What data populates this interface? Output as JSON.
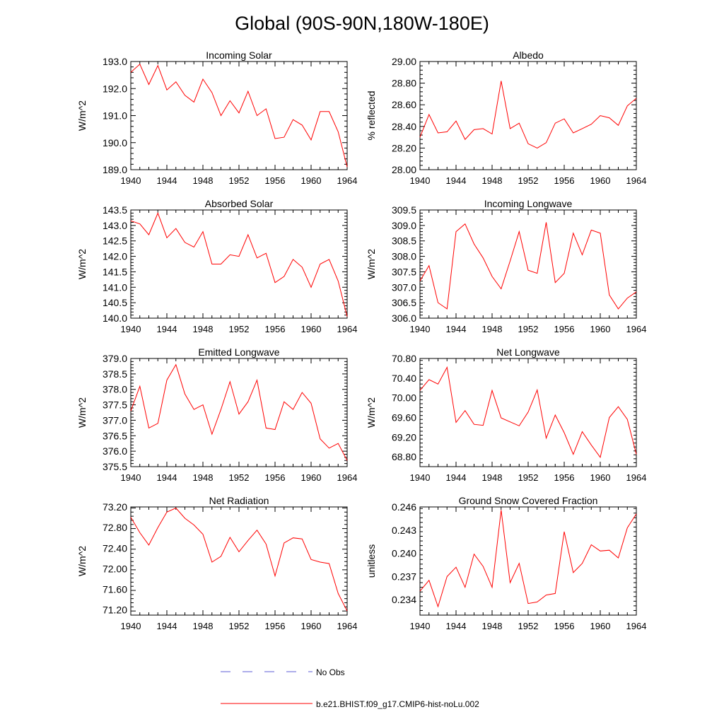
{
  "figure": {
    "title": "Global (90S-90N,180W-180E)",
    "legend": {
      "obs_label": "No Obs",
      "obs_color": "#5b5bd6",
      "model_label": "b.e21.BHIST.f09_g17.CMIP6-hist-noLu.002",
      "model_color": "#ff0000"
    }
  },
  "chart_data": [
    {
      "type": "line",
      "title": "Incoming Solar",
      "ylabel": "W/m^2",
      "xlim": [
        1940,
        1964
      ],
      "ylim": [
        189.0,
        193.0
      ],
      "xticks": [
        1940,
        1944,
        1948,
        1952,
        1956,
        1960,
        1964
      ],
      "yticks": [
        "189.0",
        "190.0",
        "191.0",
        "192.0",
        "193.0"
      ],
      "series": [
        {
          "color": "#ff0000",
          "x": [
            1940,
            1941,
            1942,
            1943,
            1944,
            1945,
            1946,
            1947,
            1948,
            1949,
            1950,
            1951,
            1952,
            1953,
            1954,
            1955,
            1956,
            1957,
            1958,
            1959,
            1960,
            1961,
            1962,
            1963,
            1964
          ],
          "y": [
            192.6,
            192.9,
            192.15,
            192.85,
            191.95,
            192.25,
            191.75,
            191.5,
            192.35,
            191.85,
            191.0,
            191.55,
            191.1,
            191.9,
            191.0,
            191.25,
            190.15,
            190.2,
            190.85,
            190.65,
            190.1,
            191.15,
            191.15,
            190.4,
            189.1
          ]
        }
      ]
    },
    {
      "type": "line",
      "title": "Albedo",
      "ylabel": "% reflected",
      "xlim": [
        1940,
        1964
      ],
      "ylim": [
        28.0,
        29.0
      ],
      "xticks": [
        1940,
        1944,
        1948,
        1952,
        1956,
        1960,
        1964
      ],
      "yticks": [
        "28.00",
        "28.20",
        "28.40",
        "28.60",
        "28.80",
        "29.00"
      ],
      "series": [
        {
          "color": "#ff0000",
          "x": [
            1940,
            1941,
            1942,
            1943,
            1944,
            1945,
            1946,
            1947,
            1948,
            1949,
            1950,
            1951,
            1952,
            1953,
            1954,
            1955,
            1956,
            1957,
            1958,
            1959,
            1960,
            1961,
            1962,
            1963,
            1964
          ],
          "y": [
            28.3,
            28.51,
            28.34,
            28.35,
            28.45,
            28.28,
            28.37,
            28.38,
            28.33,
            28.82,
            28.38,
            28.43,
            28.24,
            28.2,
            28.25,
            28.43,
            28.47,
            28.34,
            28.38,
            28.42,
            28.5,
            28.48,
            28.41,
            28.59,
            28.66
          ]
        }
      ]
    },
    {
      "type": "line",
      "title": "Absorbed Solar",
      "ylabel": "W/m^2",
      "xlim": [
        1940,
        1964
      ],
      "ylim": [
        140.0,
        143.5
      ],
      "xticks": [
        1940,
        1944,
        1948,
        1952,
        1956,
        1960,
        1964
      ],
      "yticks": [
        "140.0",
        "140.5",
        "141.0",
        "141.5",
        "142.0",
        "142.5",
        "143.0",
        "143.5"
      ],
      "series": [
        {
          "color": "#ff0000",
          "x": [
            1940,
            1941,
            1942,
            1943,
            1944,
            1945,
            1946,
            1947,
            1948,
            1949,
            1950,
            1951,
            1952,
            1953,
            1954,
            1955,
            1956,
            1957,
            1958,
            1959,
            1960,
            1961,
            1962,
            1963,
            1964
          ],
          "y": [
            143.15,
            143.05,
            142.7,
            143.4,
            142.6,
            142.9,
            142.45,
            142.3,
            142.8,
            141.75,
            141.75,
            142.05,
            142.0,
            142.7,
            141.95,
            142.1,
            141.15,
            141.35,
            141.9,
            141.65,
            141.0,
            141.75,
            141.9,
            141.2,
            140.05
          ]
        }
      ]
    },
    {
      "type": "line",
      "title": "Incoming Longwave",
      "ylabel": "W/m^2",
      "xlim": [
        1940,
        1964
      ],
      "ylim": [
        306.0,
        309.5
      ],
      "xticks": [
        1940,
        1944,
        1948,
        1952,
        1956,
        1960,
        1964
      ],
      "yticks": [
        "306.0",
        "306.5",
        "307.0",
        "307.5",
        "308.0",
        "308.5",
        "309.0",
        "309.5"
      ],
      "series": [
        {
          "color": "#ff0000",
          "x": [
            1940,
            1941,
            1942,
            1943,
            1944,
            1945,
            1946,
            1947,
            1948,
            1949,
            1950,
            1951,
            1952,
            1953,
            1954,
            1955,
            1956,
            1957,
            1958,
            1959,
            1960,
            1961,
            1962,
            1963,
            1964
          ],
          "y": [
            307.2,
            307.7,
            306.5,
            306.3,
            308.8,
            309.05,
            308.4,
            307.95,
            307.35,
            306.95,
            307.85,
            308.8,
            307.55,
            307.45,
            309.1,
            307.15,
            307.45,
            308.75,
            308.05,
            308.85,
            308.75,
            306.75,
            306.3,
            306.65,
            306.85
          ]
        }
      ]
    },
    {
      "type": "line",
      "title": "Emitted Longwave",
      "ylabel": "W/m^2",
      "xlim": [
        1940,
        1964
      ],
      "ylim": [
        375.5,
        379.0
      ],
      "xticks": [
        1940,
        1944,
        1948,
        1952,
        1956,
        1960,
        1964
      ],
      "yticks": [
        "375.5",
        "376.0",
        "376.5",
        "377.0",
        "377.5",
        "378.0",
        "378.5",
        "379.0"
      ],
      "series": [
        {
          "color": "#ff0000",
          "x": [
            1940,
            1941,
            1942,
            1943,
            1944,
            1945,
            1946,
            1947,
            1948,
            1949,
            1950,
            1951,
            1952,
            1953,
            1954,
            1955,
            1956,
            1957,
            1958,
            1959,
            1960,
            1961,
            1962,
            1963,
            1964
          ],
          "y": [
            377.3,
            378.1,
            376.75,
            376.9,
            378.3,
            378.8,
            377.85,
            377.35,
            377.5,
            376.55,
            377.35,
            378.25,
            377.2,
            377.6,
            378.3,
            376.75,
            376.7,
            377.6,
            377.35,
            377.9,
            377.55,
            376.4,
            376.1,
            376.25,
            375.7
          ]
        }
      ]
    },
    {
      "type": "line",
      "title": "Net Longwave",
      "ylabel": "W/m^2",
      "xlim": [
        1940,
        1964
      ],
      "ylim": [
        68.6,
        70.8
      ],
      "xticks": [
        1940,
        1944,
        1948,
        1952,
        1956,
        1960,
        1964
      ],
      "yticks": [
        "68.80",
        "69.20",
        "69.60",
        "70.00",
        "70.40",
        "70.80"
      ],
      "series": [
        {
          "color": "#ff0000",
          "x": [
            1940,
            1941,
            1942,
            1943,
            1944,
            1945,
            1946,
            1947,
            1948,
            1949,
            1950,
            1951,
            1952,
            1953,
            1954,
            1955,
            1956,
            1957,
            1958,
            1959,
            1960,
            1961,
            1962,
            1963,
            1964
          ],
          "y": [
            70.15,
            70.37,
            70.28,
            70.62,
            69.5,
            69.74,
            69.46,
            69.44,
            70.15,
            69.59,
            69.51,
            69.43,
            69.71,
            70.16,
            69.18,
            69.65,
            69.29,
            68.85,
            69.31,
            69.04,
            68.79,
            69.6,
            69.82,
            69.56,
            68.85
          ]
        }
      ]
    },
    {
      "type": "line",
      "title": "Net Radiation",
      "ylabel": "W/m^2",
      "xlim": [
        1940,
        1964
      ],
      "ylim": [
        71.1,
        73.2
      ],
      "xticks": [
        1940,
        1944,
        1948,
        1952,
        1956,
        1960,
        1964
      ],
      "yticks": [
        "71.20",
        "71.60",
        "72.00",
        "72.40",
        "72.80",
        "73.20"
      ],
      "series": [
        {
          "color": "#ff0000",
          "x": [
            1940,
            1941,
            1942,
            1943,
            1944,
            1945,
            1946,
            1947,
            1948,
            1949,
            1950,
            1951,
            1952,
            1953,
            1954,
            1955,
            1956,
            1957,
            1958,
            1959,
            1960,
            1961,
            1962,
            1963,
            1964
          ],
          "y": [
            73.0,
            72.7,
            72.46,
            72.8,
            73.1,
            73.18,
            72.98,
            72.85,
            72.67,
            72.13,
            72.24,
            72.61,
            72.33,
            72.55,
            72.75,
            72.48,
            71.86,
            72.5,
            72.6,
            72.58,
            72.18,
            72.13,
            72.1,
            71.52,
            71.18
          ]
        }
      ]
    },
    {
      "type": "line",
      "title": "Ground Snow Covered Fraction",
      "ylabel": "unitless",
      "xlim": [
        1940,
        1964
      ],
      "ylim": [
        0.232,
        0.246
      ],
      "xticks": [
        1940,
        1944,
        1948,
        1952,
        1956,
        1960,
        1964
      ],
      "yticks": [
        "0.234",
        "0.237",
        "0.240",
        "0.243",
        "0.246"
      ],
      "series": [
        {
          "color": "#ff0000",
          "x": [
            1940,
            1941,
            1942,
            1943,
            1944,
            1945,
            1946,
            1947,
            1948,
            1949,
            1950,
            1951,
            1952,
            1953,
            1954,
            1955,
            1956,
            1957,
            1958,
            1959,
            1960,
            1961,
            1962,
            1963,
            1964
          ],
          "y": [
            0.2351,
            0.2365,
            0.2331,
            0.237,
            0.2382,
            0.2356,
            0.2399,
            0.2383,
            0.2356,
            0.2456,
            0.2362,
            0.2387,
            0.2335,
            0.2337,
            0.2346,
            0.2348,
            0.2428,
            0.2375,
            0.2387,
            0.2411,
            0.2403,
            0.2404,
            0.2394,
            0.2433,
            0.2451
          ]
        }
      ]
    }
  ]
}
